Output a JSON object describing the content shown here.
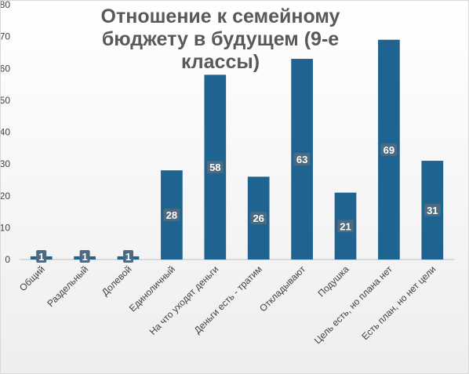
{
  "chart_data": {
    "type": "bar",
    "title": "Отношение к семейному бюджету в будущем (9-е классы)",
    "categories": [
      "Общий",
      "Раздельный",
      "Долевой",
      "Единоличный",
      "На что уходят деньги",
      "Деньги есть - тратим",
      "Откладывают",
      "Подушка",
      "Цель есть, но плана нет",
      "Есть план, но нет цели"
    ],
    "values": [
      1,
      1,
      1,
      28,
      58,
      26,
      63,
      21,
      69,
      31
    ],
    "yticks": [
      0,
      10,
      20,
      30,
      40,
      50,
      60,
      70,
      80
    ],
    "ylim": [
      0,
      80
    ],
    "xlabel": "",
    "ylabel": "",
    "grid": false,
    "legend": "none",
    "bar_color": "#1f6391",
    "label_bg": "#4d6a80",
    "label_color": "#ffffff"
  }
}
